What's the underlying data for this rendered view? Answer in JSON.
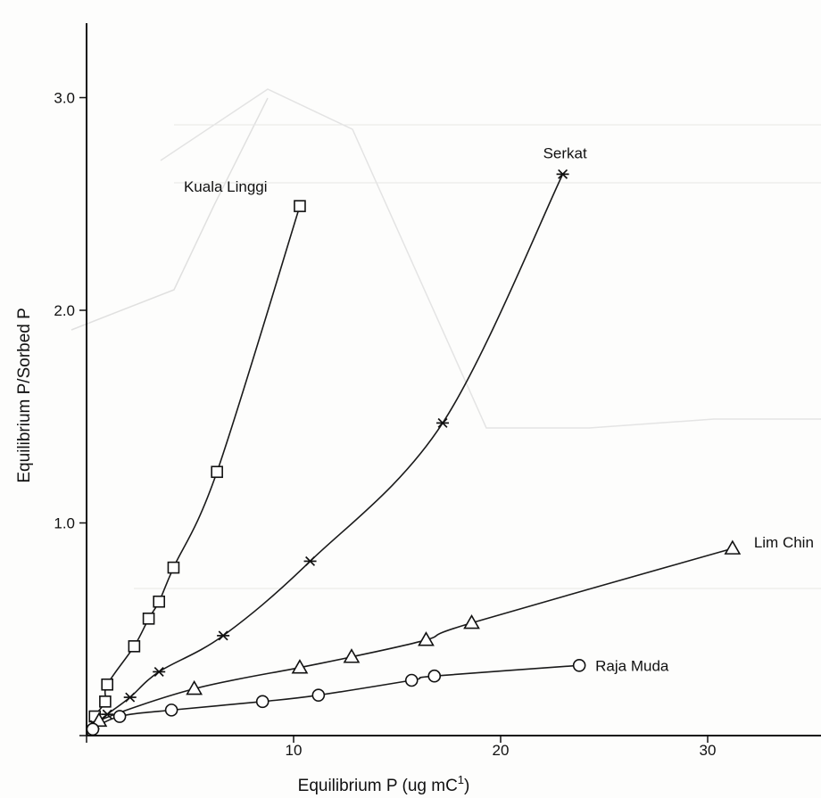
{
  "chart_data": {
    "type": "scatter",
    "title": "",
    "xlabel": "Equilibrium P (ug mC",
    "xlabel_sup": "1",
    "xlabel_close": ")",
    "ylabel": "Equilibrium P/Sorbed P",
    "xlim": [
      0,
      37
    ],
    "ylim": [
      0,
      3.35
    ],
    "x_ticks": [
      0,
      10,
      20,
      30
    ],
    "x_tick_labels": [
      "",
      "10",
      "20",
      "30"
    ],
    "y_ticks": [
      0,
      1.0,
      2.0,
      3.0
    ],
    "y_tick_labels": [
      "",
      "1.0",
      "2.0",
      "3.0"
    ],
    "grid": false,
    "series": [
      {
        "name": "Kuala Linggi",
        "marker": "square",
        "x": [
          0.4,
          0.9,
          1.0,
          2.3,
          3.0,
          3.5,
          4.2,
          6.3,
          10.3
        ],
        "y": [
          0.09,
          0.16,
          0.24,
          0.42,
          0.55,
          0.63,
          0.79,
          1.24,
          2.49
        ]
      },
      {
        "name": "Serkat",
        "marker": "asterisk",
        "x": [
          0.4,
          1.0,
          2.1,
          3.5,
          6.6,
          10.8,
          17.2,
          23.0
        ],
        "y": [
          0.05,
          0.1,
          0.18,
          0.3,
          0.47,
          0.82,
          1.47,
          2.64
        ]
      },
      {
        "name": "Lim Chin",
        "marker": "triangle",
        "x": [
          0.6,
          5.2,
          10.3,
          12.8,
          16.4,
          18.6,
          31.2
        ],
        "y": [
          0.07,
          0.22,
          0.32,
          0.37,
          0.45,
          0.53,
          0.88
        ]
      },
      {
        "name": "Raja Muda",
        "marker": "circle",
        "x": [
          0.3,
          1.6,
          4.1,
          8.5,
          11.2,
          15.7,
          16.8,
          23.8
        ],
        "y": [
          0.03,
          0.09,
          0.12,
          0.16,
          0.19,
          0.26,
          0.28,
          0.33
        ]
      }
    ]
  }
}
